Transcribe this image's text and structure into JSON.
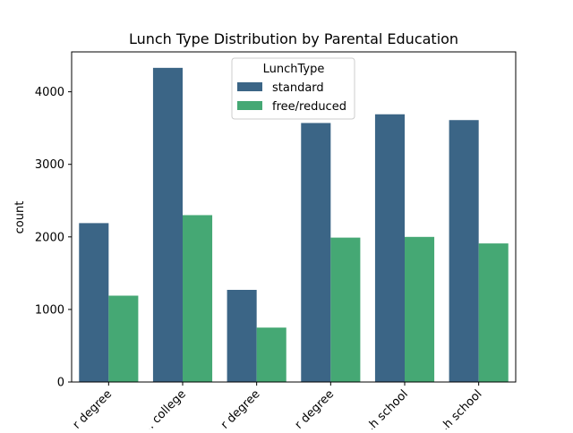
{
  "chart_data": {
    "type": "bar",
    "title": "Lunch Type Distribution by Parental Education",
    "xlabel": "",
    "ylabel": "count",
    "ylim": [
      0,
      4550
    ],
    "yticks": [
      0,
      1000,
      2000,
      3000,
      4000
    ],
    "categories": [
      "...r degree",
      "... college",
      "...r degree",
      "...r degree",
      "...h school",
      "...h school"
    ],
    "series": [
      {
        "name": "standard",
        "color": "#3b6586",
        "values": [
          2190,
          4330,
          1270,
          3570,
          3690,
          3610
        ]
      },
      {
        "name": "free/reduced",
        "color": "#45a874",
        "values": [
          1190,
          2300,
          750,
          1990,
          2000,
          1910
        ]
      }
    ],
    "legend": {
      "title": "LunchType",
      "placement": "top-center"
    },
    "grid": false
  }
}
